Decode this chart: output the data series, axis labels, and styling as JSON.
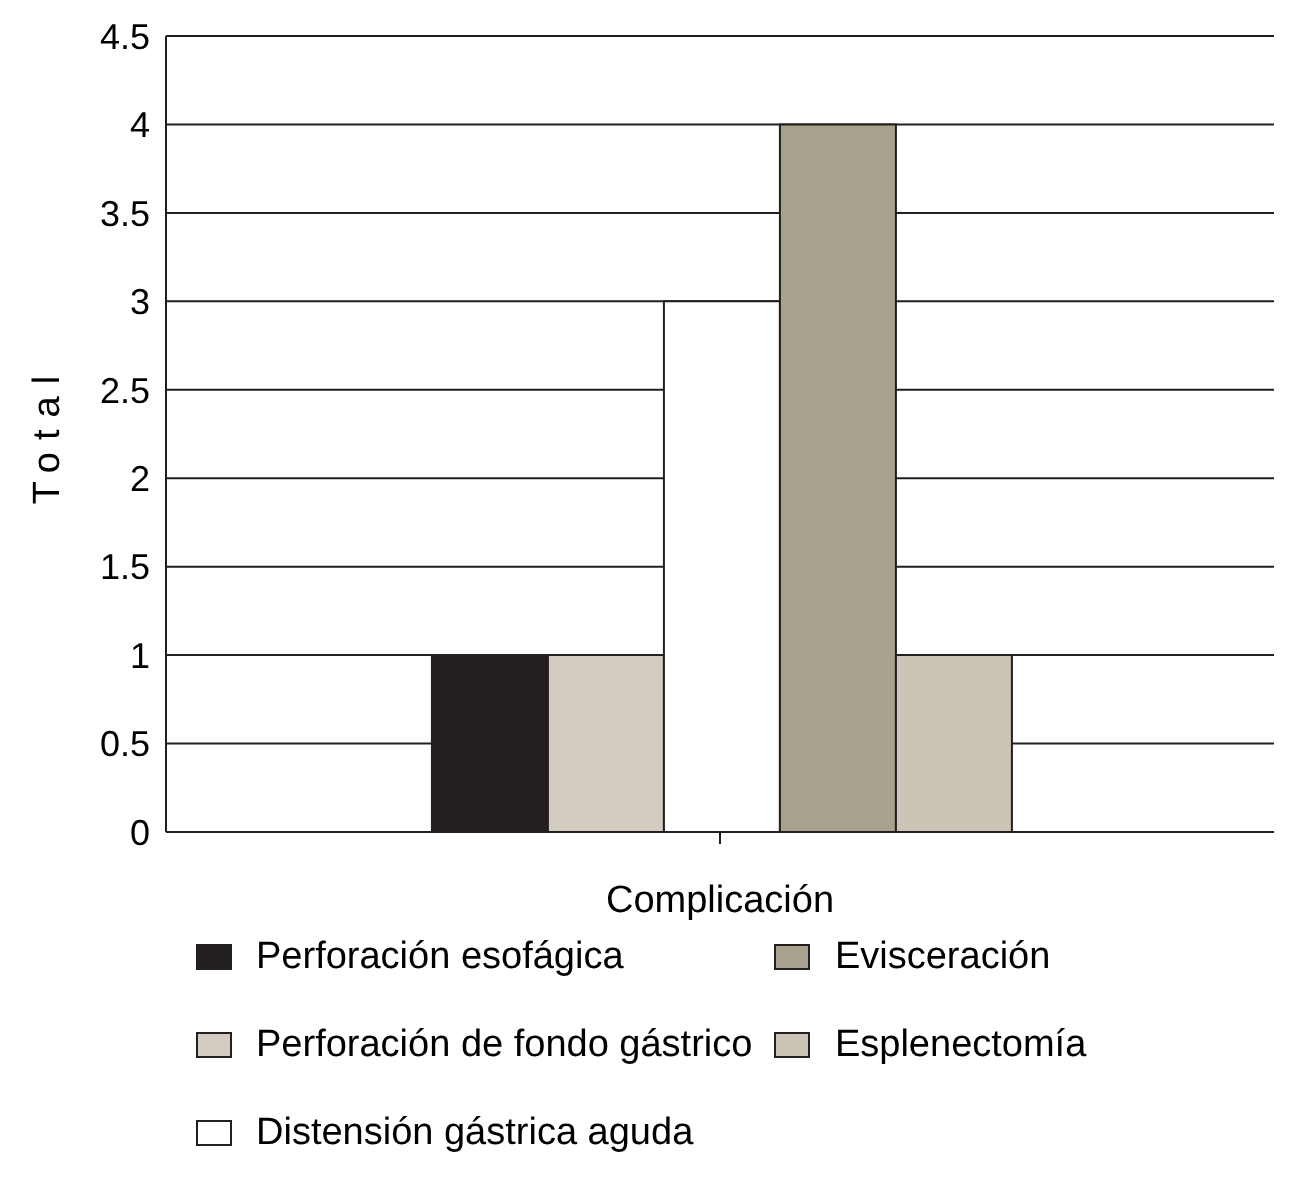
{
  "chart_data": {
    "type": "bar",
    "xlabel": "Complicación",
    "ylabel": "Total",
    "categories": [
      null
    ],
    "series": [
      {
        "name": "Perforación esofágica",
        "color": "#231f20",
        "values": [
          1
        ]
      },
      {
        "name": "Perforación de fondo gástrico",
        "color": "#d3ccc0",
        "values": [
          1
        ]
      },
      {
        "name": "Distensión gástrica aguda",
        "color": "#ffffff",
        "values": [
          3
        ]
      },
      {
        "name": "Evisceración",
        "color": "#a8a18d",
        "values": [
          4
        ]
      },
      {
        "name": "Esplenectomía",
        "color": "#cbc4b7",
        "values": [
          1
        ]
      }
    ],
    "ylim": [
      0,
      4.5
    ],
    "yticks": [
      0,
      0.5,
      1,
      1.5,
      2,
      2.5,
      3,
      3.5,
      4,
      4.5
    ],
    "grid": "y",
    "legend": "bottom"
  }
}
